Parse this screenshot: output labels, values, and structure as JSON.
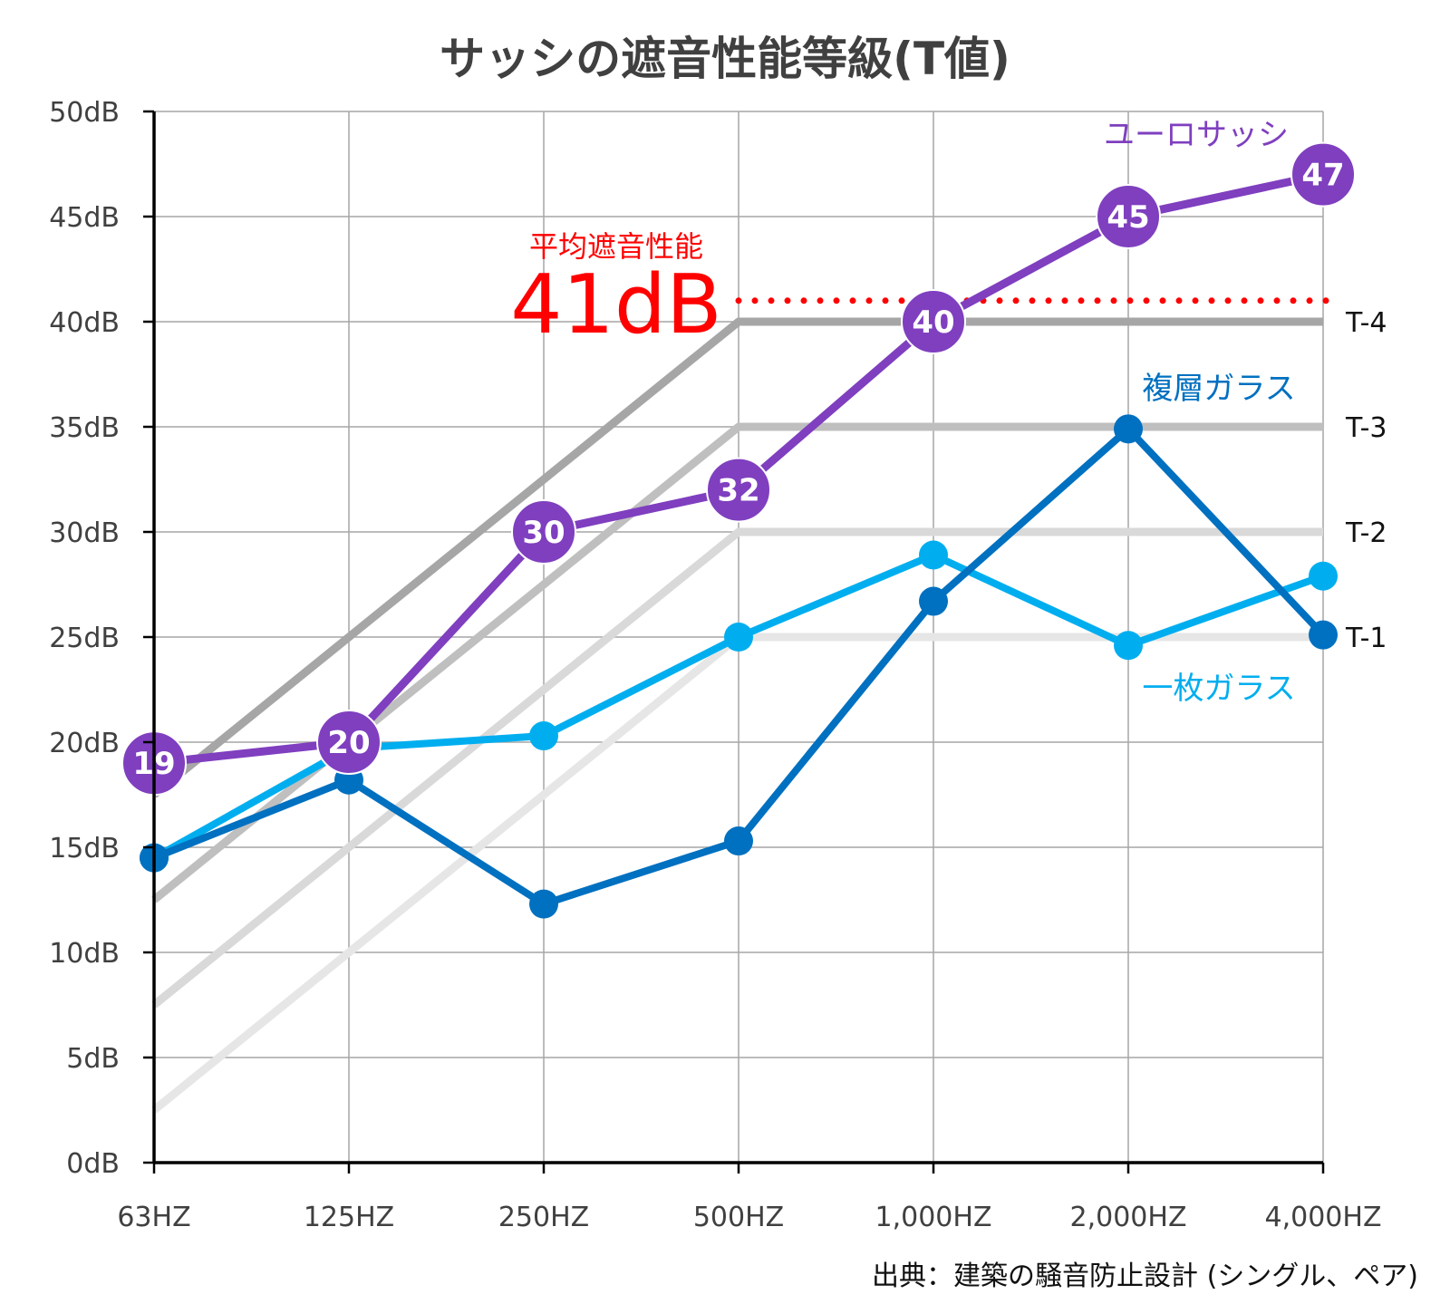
{
  "chart_data": {
    "type": "line",
    "title": "サッシの遮音性能等級(T値)",
    "categories": [
      "63HZ",
      "125HZ",
      "250HZ",
      "500HZ",
      "1,000HZ",
      "2,000HZ",
      "4,000HZ"
    ],
    "y_ticks": [
      "0dB",
      "5dB",
      "10dB",
      "15dB",
      "20dB",
      "25dB",
      "30dB",
      "35dB",
      "40dB",
      "45dB",
      "50dB"
    ],
    "ylim": [
      0,
      50
    ],
    "grid": true,
    "reference_lines": [
      {
        "name": "T-1",
        "values": [
          2.5,
          10,
          17.5,
          25,
          25,
          25,
          25
        ],
        "color": "#e6e6e6"
      },
      {
        "name": "T-2",
        "values": [
          7.5,
          15,
          22.5,
          30,
          30,
          30,
          30
        ],
        "color": "#d9d9d9"
      },
      {
        "name": "T-3",
        "values": [
          12.5,
          20,
          27.5,
          35,
          35,
          35,
          35
        ],
        "color": "#bfbfbf"
      },
      {
        "name": "T-4",
        "values": [
          17.5,
          25,
          32.5,
          40,
          40,
          40,
          40
        ],
        "color": "#a6a6a6"
      }
    ],
    "series": [
      {
        "name": "一枚ガラス",
        "values": [
          14.5,
          19.7,
          20.3,
          25,
          28.9,
          24.6,
          27.9
        ],
        "color": "#00aeef"
      },
      {
        "name": "複層ガラス",
        "values": [
          14.5,
          18.2,
          12.3,
          15.3,
          26.7,
          34.9,
          25.1
        ],
        "color": "#0070c0"
      },
      {
        "name": "ユーロサッシ",
        "values": [
          19,
          20,
          30,
          32,
          40,
          45,
          47
        ],
        "color": "#7f3fbf",
        "point_labels": [
          "19",
          "20",
          "30",
          "32",
          "40",
          "45",
          "47"
        ]
      }
    ],
    "average": {
      "label": "平均遮音性能",
      "value_text": "41dB",
      "value": 41,
      "from_category": "500HZ",
      "color": "#ff0000"
    }
  },
  "source": "出典：建築の騒音防止設計 (シングル、ペア)"
}
